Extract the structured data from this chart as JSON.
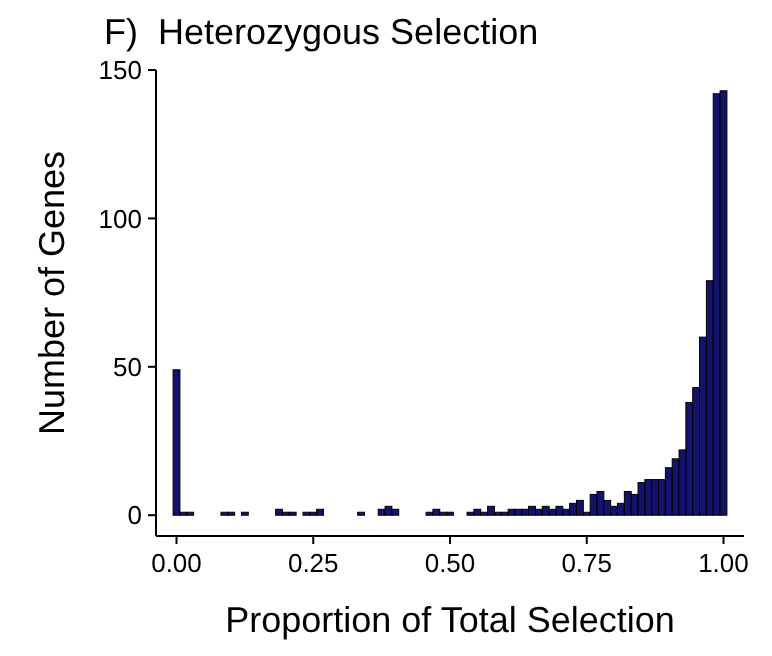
{
  "chart_data": {
    "type": "histogram",
    "title": "F)  Heterozygous Selection",
    "xlabel": "Proportion of Total Selection",
    "ylabel": "Number of Genes",
    "color": "#13136b",
    "grid": false,
    "bins": [
      -0.00625,
      0.00625,
      0.01875,
      0.03125,
      0.04375,
      0.05625,
      0.06875,
      0.08125,
      0.09375,
      0.10625,
      0.11875,
      0.13125,
      0.14375,
      0.15625,
      0.16875,
      0.18125,
      0.19375,
      0.20625,
      0.21875,
      0.23125,
      0.24375,
      0.25625,
      0.26875,
      0.28125,
      0.29375,
      0.30625,
      0.31875,
      0.33125,
      0.34375,
      0.35625,
      0.36875,
      0.38125,
      0.39375,
      0.40625,
      0.41875,
      0.43125,
      0.44375,
      0.45625,
      0.46875,
      0.48125,
      0.49375,
      0.50625,
      0.51875,
      0.53125,
      0.54375,
      0.55625,
      0.56875,
      0.58125,
      0.59375,
      0.60625,
      0.61875,
      0.63125,
      0.64375,
      0.65625,
      0.66875,
      0.68125,
      0.69375,
      0.70625,
      0.71875,
      0.73125,
      0.74375,
      0.75625,
      0.76875,
      0.78125,
      0.79375,
      0.80625,
      0.81875,
      0.83125,
      0.84375,
      0.85625,
      0.86875,
      0.88125,
      0.89375,
      0.90625,
      0.91875,
      0.93125,
      0.94375,
      0.95625,
      0.96875,
      0.98125,
      0.99375,
      1.00625
    ],
    "values": [
      49,
      1,
      1,
      0,
      0,
      0,
      0,
      1,
      1,
      0,
      1,
      0,
      0,
      0,
      0,
      2,
      1,
      1,
      0,
      1,
      1,
      2,
      0,
      0,
      0,
      0,
      0,
      1,
      0,
      0,
      2,
      3,
      2,
      0,
      0,
      0,
      0,
      1,
      2,
      1,
      1,
      0,
      0,
      1,
      2,
      1,
      3,
      1,
      1,
      2,
      2,
      2,
      3,
      2,
      3,
      2,
      3,
      2,
      4,
      5,
      1,
      7,
      8,
      5,
      3,
      4,
      8,
      7,
      11,
      12,
      12,
      12,
      16,
      19,
      22,
      38,
      43,
      60,
      79,
      142,
      143
    ],
    "xlim": [
      -0.0375,
      1.0375
    ],
    "xticks": [
      {
        "value": 0,
        "label": "0.00"
      },
      {
        "value": 0.25,
        "label": "0.25"
      },
      {
        "value": 0.5,
        "label": "0.50"
      },
      {
        "value": 0.75,
        "label": "0.75"
      },
      {
        "value": 1,
        "label": "1.00"
      }
    ],
    "ylim": [
      -7,
      150
    ],
    "yticks": [
      0,
      50,
      100,
      150
    ]
  }
}
